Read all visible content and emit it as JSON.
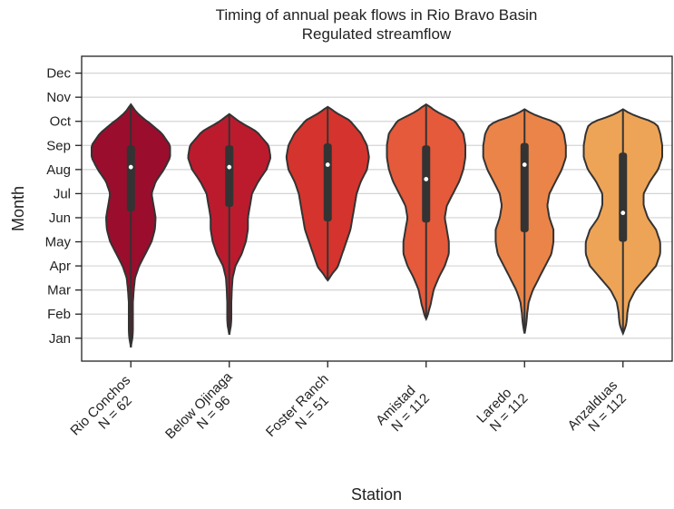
{
  "chart_data": {
    "type": "violin",
    "title": "Timing of annual peak flows in Rio Bravo Basin",
    "subtitle": "Regulated streamflow",
    "x_label": "Station",
    "y_label": "Month",
    "categories": [
      "Rio Conchos\nN = 62",
      "Below Ojinaga\nN = 96",
      "Foster Ranch\nN = 51",
      "Amistad\nN = 112",
      "Laredo\nN = 112",
      "Anzalduas\nN = 112"
    ],
    "ylim": [
      0.05,
      12.7
    ],
    "yticks": [
      {
        "value": 1,
        "label": "Jan"
      },
      {
        "value": 2,
        "label": "Feb"
      },
      {
        "value": 3,
        "label": "Mar"
      },
      {
        "value": 4,
        "label": "Apr"
      },
      {
        "value": 5,
        "label": "May"
      },
      {
        "value": 6,
        "label": "Jun"
      },
      {
        "value": 7,
        "label": "Jul"
      },
      {
        "value": 8,
        "label": "Aug"
      },
      {
        "value": 9,
        "label": "Sep"
      },
      {
        "value": 10,
        "label": "Oct"
      },
      {
        "value": 11,
        "label": "Nov"
      },
      {
        "value": 12,
        "label": "Dec"
      }
    ],
    "grid": true,
    "density_grid": [
      0.5,
      1,
      1.5,
      2,
      2.5,
      3,
      3.5,
      4,
      4.5,
      5,
      5.5,
      6,
      6.5,
      7,
      7.5,
      8,
      8.5,
      9,
      9.5,
      10,
      10.5,
      11,
      11.5
    ],
    "series": [
      {
        "color": "#9b0d2d",
        "min": 0.62,
        "q1": 6.26,
        "median": 8.1,
        "q3": 9.0,
        "max": 10.7,
        "density": [
          0,
          0.05,
          0.05,
          0.05,
          0.05,
          0.07,
          0.1,
          0.2,
          0.35,
          0.5,
          0.58,
          0.6,
          0.55,
          0.5,
          0.6,
          0.8,
          0.95,
          0.95,
          0.75,
          0.4,
          0.15,
          0,
          0
        ]
      },
      {
        "color": "#bc1b2e",
        "min": 1.15,
        "q1": 6.45,
        "median": 8.1,
        "q3": 9.0,
        "max": 10.3,
        "density": [
          0,
          0,
          0.05,
          0.05,
          0.05,
          0.06,
          0.08,
          0.15,
          0.3,
          0.4,
          0.45,
          0.45,
          0.5,
          0.55,
          0.7,
          0.9,
          1.0,
          0.95,
          0.7,
          0.35,
          0,
          0,
          0
        ]
      },
      {
        "color": "#d4342d",
        "min": 3.4,
        "q1": 5.85,
        "median": 8.2,
        "q3": 9.08,
        "max": 10.6,
        "density": [
          0,
          0,
          0,
          0,
          0,
          0,
          0.1,
          0.25,
          0.35,
          0.45,
          0.55,
          0.6,
          0.65,
          0.7,
          0.8,
          0.95,
          1.0,
          0.95,
          0.8,
          0.55,
          0.2,
          0,
          0
        ]
      },
      {
        "color": "#e45a3b",
        "min": 1.8,
        "q1": 5.8,
        "median": 7.6,
        "q3": 9.0,
        "max": 10.7,
        "density": [
          0,
          0,
          0,
          0.08,
          0.12,
          0.18,
          0.3,
          0.45,
          0.55,
          0.55,
          0.5,
          0.45,
          0.5,
          0.65,
          0.8,
          0.9,
          0.95,
          0.95,
          0.9,
          0.7,
          0.3,
          0,
          0
        ]
      },
      {
        "color": "#eb8448",
        "min": 1.2,
        "q1": 5.4,
        "median": 8.2,
        "q3": 9.1,
        "max": 10.5,
        "density": [
          0,
          0,
          0.05,
          0.06,
          0.1,
          0.2,
          0.35,
          0.5,
          0.65,
          0.7,
          0.7,
          0.6,
          0.55,
          0.6,
          0.75,
          0.9,
          1.0,
          1.0,
          0.95,
          0.8,
          0.1,
          0,
          0
        ]
      },
      {
        "color": "#eea456",
        "min": 1.2,
        "q1": 5.0,
        "median": 6.2,
        "q3": 8.7,
        "max": 10.5,
        "density": [
          0,
          0,
          0.1,
          0.1,
          0.15,
          0.3,
          0.55,
          0.8,
          0.9,
          0.9,
          0.8,
          0.6,
          0.5,
          0.5,
          0.65,
          0.85,
          0.95,
          0.95,
          0.9,
          0.8,
          0.1,
          0,
          0
        ]
      }
    ]
  }
}
